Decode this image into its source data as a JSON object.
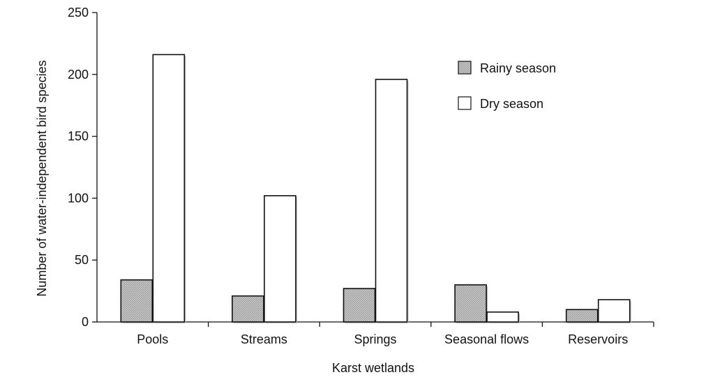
{
  "chart_data": {
    "type": "bar",
    "categories": [
      "Pools",
      "Streams",
      "Springs",
      "Seasonal flows",
      "Reservoirs"
    ],
    "series": [
      {
        "name": "Rainy season",
        "values": [
          34,
          21,
          27,
          30,
          10
        ],
        "style": "hatched"
      },
      {
        "name": "Dry season",
        "values": [
          216,
          102,
          196,
          8,
          18
        ],
        "style": "open"
      }
    ],
    "xlabel": "Karst wetlands",
    "ylabel": "Number of water-independent bird species",
    "ylim": [
      0,
      250
    ],
    "yticks": [
      0,
      50,
      100,
      150,
      200,
      250
    ],
    "grid": false,
    "legend_position": "top-right",
    "colors": {
      "rainy_fill": "#c4c4c4",
      "dry_fill": "#ffffff",
      "stroke": "#111111",
      "shadow": "#bdbdbd"
    }
  }
}
